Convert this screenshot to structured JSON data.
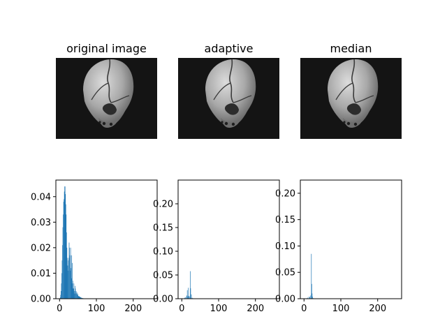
{
  "colors": {
    "bar": "#1f77b4",
    "image_bg": "#141414"
  },
  "images": [
    {
      "title": "original image"
    },
    {
      "title": "adaptive"
    },
    {
      "title": "median"
    }
  ],
  "chart_data": [
    {
      "type": "bar",
      "title": "",
      "xlabel": "",
      "ylabel": "",
      "xlim": [
        -10,
        265
      ],
      "ylim": [
        0,
        0.0465
      ],
      "xticks": [
        0,
        100,
        200
      ],
      "xtick_labels": [
        "0",
        "100",
        "200"
      ],
      "yticks": [
        0,
        0.01,
        0.02,
        0.03,
        0.04
      ],
      "ytick_labels": [
        "0.00",
        "0.01",
        "0.02",
        "0.03",
        "0.04"
      ],
      "bar_width": 1,
      "x": [
        2,
        3,
        4,
        5,
        6,
        7,
        8,
        9,
        10,
        11,
        12,
        13,
        14,
        15,
        16,
        17,
        18,
        19,
        20,
        21,
        22,
        23,
        24,
        25,
        26,
        27,
        28,
        29,
        30,
        31,
        32,
        33,
        34,
        35,
        36,
        37,
        38,
        39,
        40,
        41,
        42,
        43,
        44,
        45,
        46,
        47,
        48,
        49,
        50,
        51,
        52,
        53,
        54,
        55,
        56,
        57,
        58,
        59,
        60,
        61,
        62,
        63,
        64,
        65,
        66,
        67,
        68,
        69,
        70
      ],
      "values": [
        0.0005,
        0.0015,
        0.003,
        0.006,
        0.01,
        0.015,
        0.021,
        0.028,
        0.033,
        0.038,
        0.039,
        0.042,
        0.044,
        0.044,
        0.041,
        0.037,
        0.033,
        0.026,
        0.02,
        0.016,
        0.013,
        0.011,
        0.015,
        0.016,
        0.022,
        0.02,
        0.017,
        0.011,
        0.02,
        0.012,
        0.008,
        0.017,
        0.006,
        0.014,
        0.007,
        0.004,
        0.004,
        0.006,
        0.003,
        0.002,
        0.005,
        0.004,
        0.002,
        0.003,
        0.002,
        0.0025,
        0.0015,
        0.002,
        0.0015,
        0.001,
        0.001,
        0.001,
        0.0008,
        0.0008,
        0.0006,
        0.0005,
        0.0005,
        0.0004,
        0.0003,
        0.0003,
        0.0002,
        0.0002,
        0.0002,
        0.0001,
        0.0001,
        0.0001,
        0.0001,
        0.0001,
        0.0001
      ]
    },
    {
      "type": "bar",
      "title": "",
      "xlabel": "",
      "ylabel": "",
      "xlim": [
        -10,
        265
      ],
      "ylim": [
        0,
        0.25
      ],
      "xticks": [
        0,
        100,
        200
      ],
      "xtick_labels": [
        "0",
        "100",
        "200"
      ],
      "yticks": [
        0,
        0.05,
        0.1,
        0.15,
        0.2
      ],
      "ytick_labels": [
        "0.00",
        "0.05",
        "0.10",
        "0.15",
        "0.20"
      ],
      "bar_width": 1,
      "x": [
        8,
        10,
        13,
        14,
        15,
        17,
        18,
        20,
        22,
        23,
        24,
        26,
        28,
        30
      ],
      "values": [
        0.002,
        0.003,
        0.005,
        0.007,
        0.018,
        0.005,
        0.023,
        0.006,
        0.004,
        0.058,
        0.022,
        0.009,
        0.002,
        0.001
      ]
    },
    {
      "type": "bar",
      "title": "",
      "xlabel": "",
      "ylabel": "",
      "xlim": [
        -10,
        265
      ],
      "ylim": [
        0,
        0.225
      ],
      "xticks": [
        0,
        100,
        200
      ],
      "xtick_labels": [
        "0",
        "100",
        "200"
      ],
      "yticks": [
        0,
        0.05,
        0.1,
        0.15,
        0.2
      ],
      "ytick_labels": [
        "0.00",
        "0.05",
        "0.10",
        "0.15",
        "0.20"
      ],
      "bar_width": 1,
      "x": [
        7,
        10,
        14,
        16,
        18,
        20,
        21,
        22,
        23,
        25
      ],
      "values": [
        0.001,
        0.002,
        0.004,
        0.003,
        0.006,
        0.085,
        0.028,
        0.01,
        0.004,
        0.001
      ]
    }
  ]
}
